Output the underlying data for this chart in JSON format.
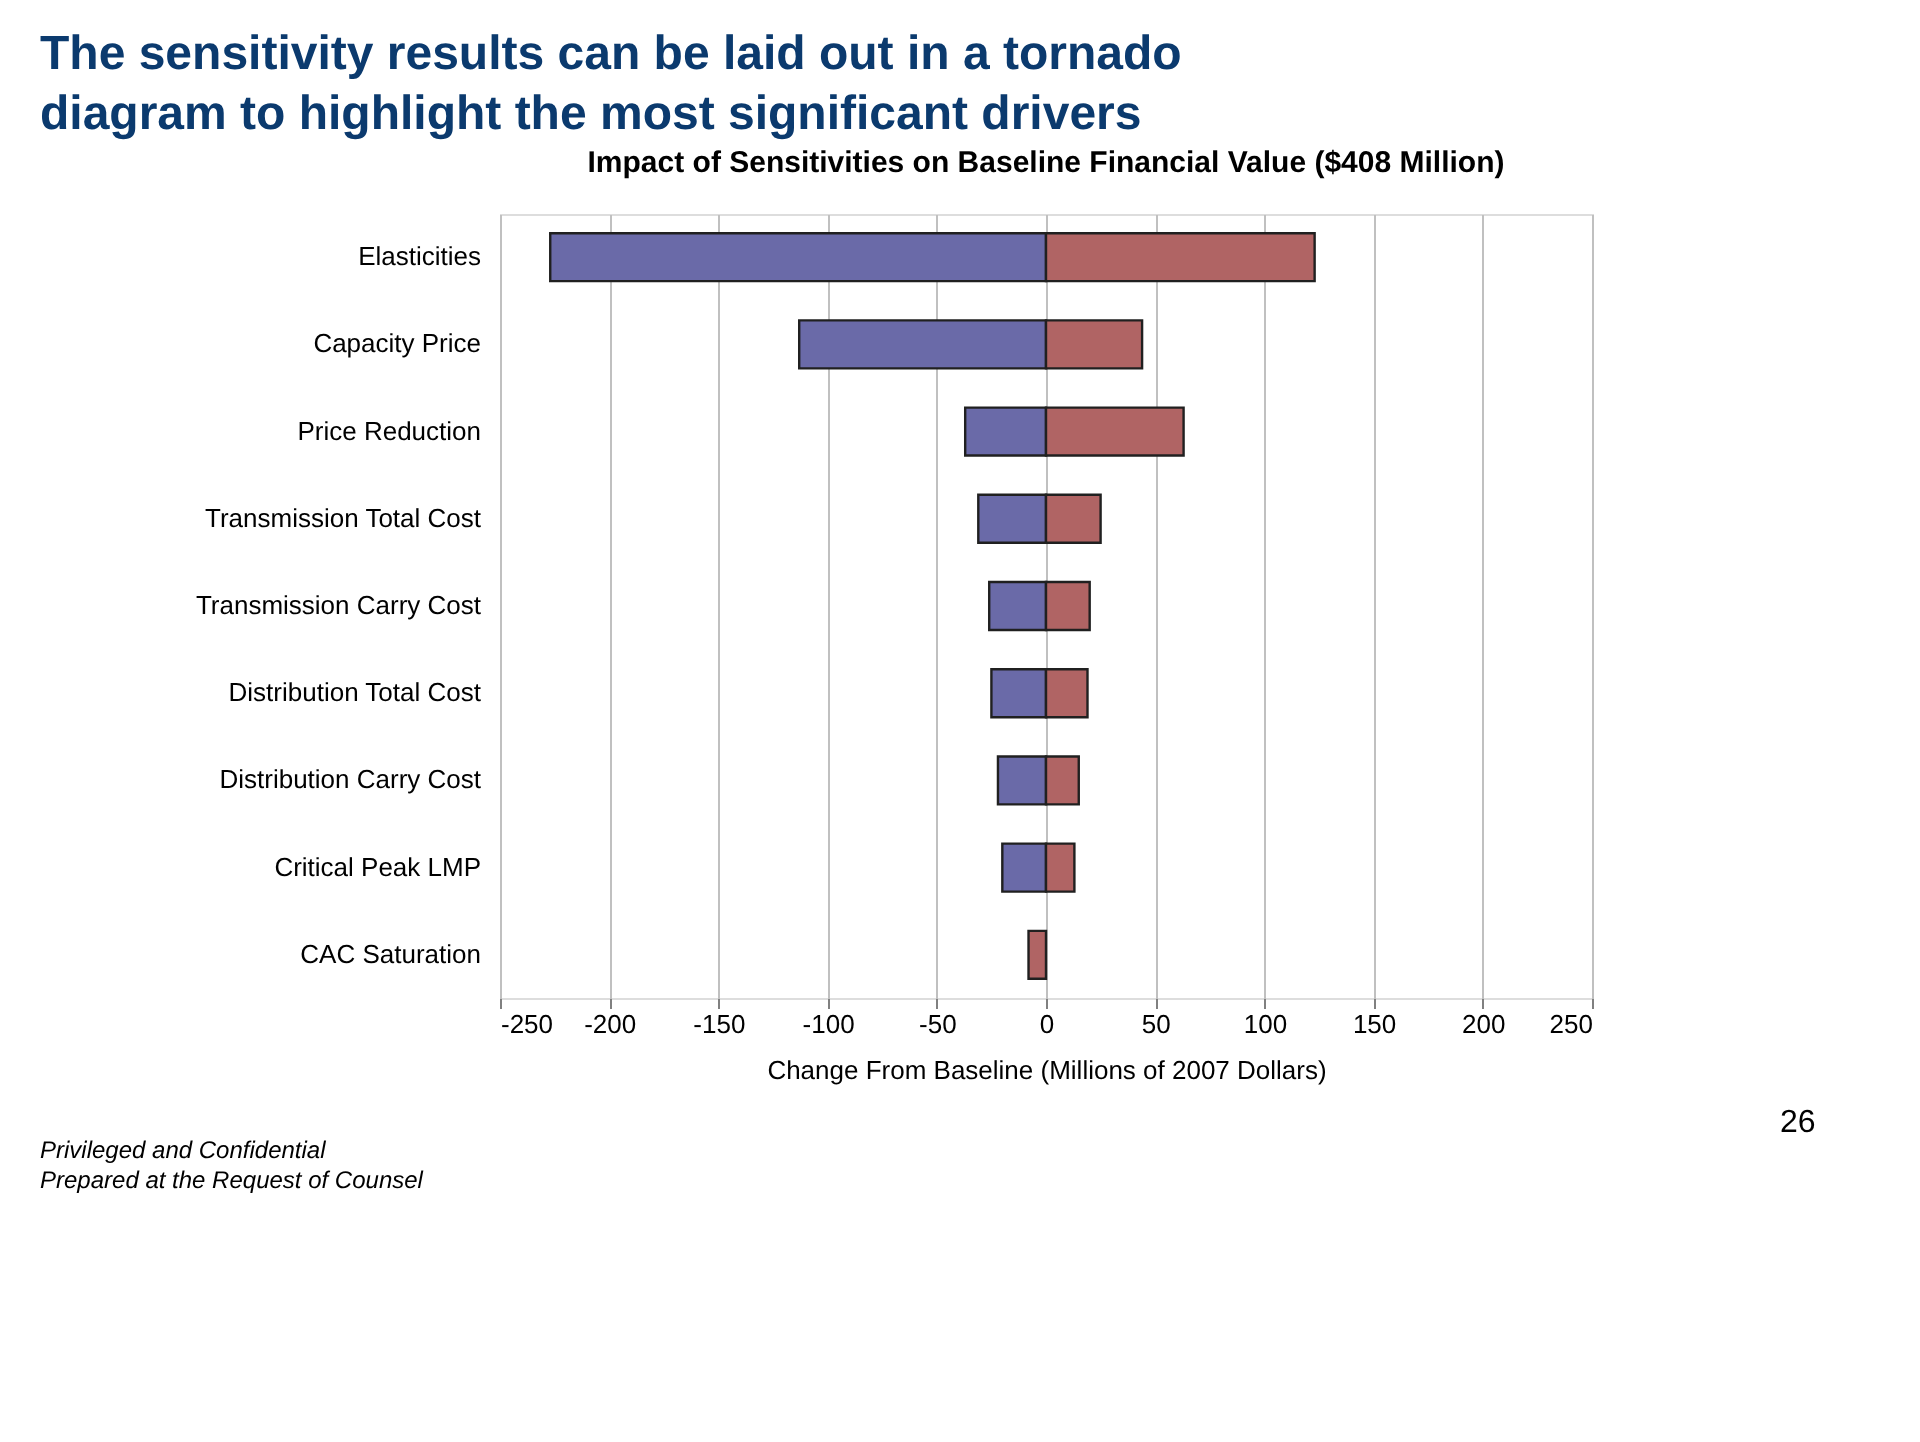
{
  "chart_data": {
    "type": "bar",
    "orientation": "horizontal",
    "title": "The sensitivity results can be laid out in a tornado diagram to highlight the most significant drivers",
    "subtitle": "Impact of Sensitivities on Baseline Financial Value ($408 Million)",
    "xlabel": "Change From Baseline (Millions of 2007 Dollars)",
    "categories": [
      "Elasticities",
      "Capacity Price",
      "Price Reduction",
      "Transmission Total Cost",
      "Transmission Carry Cost",
      "Distribution Total Cost",
      "Distribution Carry Cost",
      "Critical Peak LMP",
      "CAC Saturation"
    ],
    "series": [
      {
        "color": "#6a6aa8",
        "values": [
          -227,
          -113,
          -37,
          -31,
          -26,
          -25,
          -22,
          -20,
          null
        ]
      },
      {
        "color": "#b06464",
        "values": [
          123,
          44,
          63,
          25,
          20,
          19,
          15,
          13,
          -8
        ]
      }
    ],
    "stacked": true,
    "xlim": [
      -250,
      250
    ],
    "xticks": [
      -250,
      -200,
      -150,
      -100,
      -50,
      0,
      50,
      100,
      150,
      200,
      250
    ],
    "grid": "x",
    "legend": false,
    "annotations": [
      "Privileged and Confidential",
      "Prepared at the Request of Counsel",
      "26"
    ]
  }
}
